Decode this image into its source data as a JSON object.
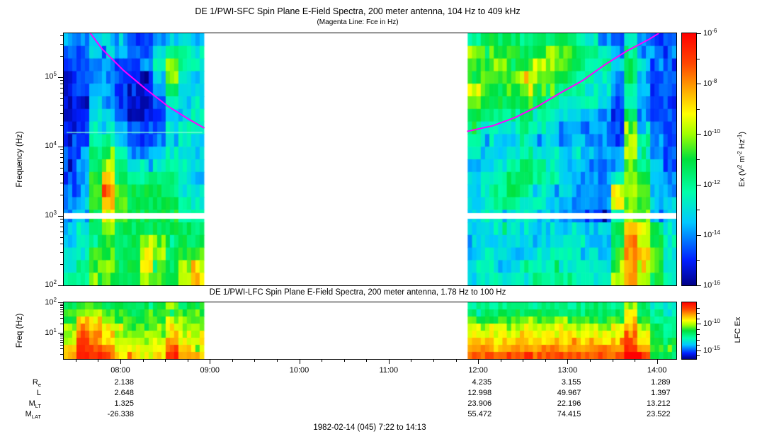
{
  "caption": "1982-02-14 (045) 7:22 to 14:13",
  "colors": {
    "fce_line": "#ff00ff",
    "frame": "#000000",
    "background": "#ffffff",
    "data_gap": "#ffffff"
  },
  "ephemeris": {
    "row_labels": [
      {
        "main": "R",
        "sub": "e"
      },
      {
        "main": "L",
        "sub": ""
      },
      {
        "main": "M",
        "sub": "LT"
      },
      {
        "main": "M",
        "sub": "LAT"
      }
    ],
    "columns": [
      {
        "time": "08:00",
        "values": [
          "2.138",
          "2.648",
          "1.325",
          "-26.338"
        ]
      },
      {
        "time": "12:00",
        "values": [
          "4.235",
          "12.998",
          "23.906",
          "55.472"
        ]
      },
      {
        "time": "13:00",
        "values": [
          "3.155",
          "49.967",
          "22.196",
          "74.415"
        ]
      },
      {
        "time": "14:00",
        "values": [
          "1.289",
          "1.397",
          "13.212",
          "23.522"
        ]
      }
    ]
  },
  "chart_data": [
    {
      "type": "heatmap",
      "title": "DE 1/PWI-SFC  Spin Plane E-Field Spectra, 200 meter antenna, 104 Hz to 409 kHz",
      "subtitle": "(Magenta Line: Fce in Hz)",
      "ylabel": "Frequency (Hz)",
      "y_scale": "log",
      "y_range_hz": [
        104,
        409000
      ],
      "exp_base": "10",
      "y_tick_exponents": [
        2,
        3,
        4,
        5
      ],
      "x_range": [
        "07:22",
        "14:13"
      ],
      "x_tick_labels": [
        "08:00",
        "09:00",
        "10:00",
        "11:00",
        "12:00",
        "13:00",
        "14:00"
      ],
      "x_minor_tick_minutes": 15,
      "data_gap": [
        "08:56",
        "11:53"
      ],
      "value_scale_log10": [
        -16,
        -6
      ],
      "separator_logf": 3.0,
      "artifact_line": {
        "time_range": [
          "07:24",
          "08:55"
        ],
        "logf": 4.21,
        "color": "rgba(130,255,215,0.9)"
      },
      "colorbar": {
        "label_segments": [
          [
            "Ex (V",
            0
          ],
          [
            "2",
            1
          ],
          [
            " m",
            0
          ],
          [
            "-2",
            1
          ],
          [
            " Hz",
            0
          ],
          [
            "-1",
            1
          ],
          [
            ")",
            0
          ]
        ],
        "tick_exponents_major": [
          -6,
          -8,
          -10,
          -12,
          -14,
          -16
        ],
        "tick_exponents_minor": [
          -7,
          -9,
          -11,
          -13,
          -15
        ],
        "range_log10": [
          -16,
          -6
        ]
      },
      "fce_line": {
        "color": "#ff00ff",
        "points_left": [
          [
            "07:40",
            5.63
          ],
          [
            "07:48",
            5.4
          ],
          [
            "08:02",
            5.1
          ],
          [
            "08:17",
            4.83
          ],
          [
            "08:32",
            4.58
          ],
          [
            "08:47",
            4.38
          ],
          [
            "08:56",
            4.27
          ]
        ],
        "points_right": [
          [
            "11:53",
            4.22
          ],
          [
            "12:10",
            4.3
          ],
          [
            "12:25",
            4.42
          ],
          [
            "12:40",
            4.58
          ],
          [
            "12:55",
            4.77
          ],
          [
            "13:10",
            4.95
          ],
          [
            "13:25",
            5.18
          ],
          [
            "13:40",
            5.38
          ],
          [
            "13:55",
            5.55
          ],
          [
            "14:01",
            5.63
          ]
        ]
      },
      "grid": {
        "rows_are_top_first": true,
        "logf_top": 5.63,
        "logf_bottom": 2.0,
        "left_block": {
          "time_range": [
            "07:22",
            "08:56"
          ],
          "rows": [
            "33443223443",
            "22443224665",
            "22332235965",
            "12332114954",
            "12432113744",
            "11432112544",
            "12542112445",
            "12553222455",
            "12664223454",
            "23775334554",
            "23796555654",
            "238b7666654",
            "238c8777655",
            "348b8777765",
            "347a8777766",
            "45797777776",
            "45787799777",
            "558877a9788",
            "568977a879a",
            "668877988ab"
          ]
        },
        "right_block": {
          "time_range": [
            "11:53",
            "14:13"
          ],
          "rows": [
            "6777677765325322",
            "9888789876536422",
            "88988a9876647422",
            "7889a98766537422",
            "a878987665536422",
            "9777876555426322",
            "7666765444327322",
            "6555654333328422",
            "5544544343329632",
            "5445655444339632",
            "4456765443338642",
            "4567765433359843",
            "45676544333a9843",
            "45665543333a9844",
            "4555544332259844",
            "445544444447ba75",
            "444544455447ca75",
            "454445555548cb85",
            "554455655558ca85",
            "555556665559c975"
          ]
        }
      }
    },
    {
      "type": "heatmap",
      "title": "DE 1/PWI-LFC  Spin Plane E-Field Spectra, 200 meter antenna, 1.78 Hz to 100 Hz",
      "ylabel": "Freq (Hz)",
      "y_scale": "log",
      "y_range_hz": [
        1.78,
        100
      ],
      "exp_base": "10",
      "y_tick_exponents": [
        1,
        2
      ],
      "x_range": [
        "07:22",
        "14:13"
      ],
      "data_gap": [
        "08:56",
        "11:53"
      ],
      "colorbar": {
        "label": "LFC Ex",
        "tick_exponents_major": [
          -10,
          -15
        ],
        "tick_exponents_minor": [
          -7,
          -8,
          -9,
          -11,
          -12,
          -13,
          -14,
          -16
        ]
      },
      "grid": {
        "rows_are_top_first": true,
        "left_block": {
          "time_range": [
            "07:22",
            "08:56"
          ],
          "rows": [
            "78877777977",
            "89988788888",
            "8ba98888a98",
            "9cba9889a99",
            "9dcb9999ba9",
            "adcba99acaa",
            "bedcaaaadba",
            "ceedbbabecb"
          ]
        },
        "right_block": {
          "time_range": [
            "11:53",
            "14:13"
          ],
          "rows": [
            "6666666666669755",
            "777777777777a765",
            "888898898888b866",
            "a9a9a9aa9a9ac976",
            "aaaabaabaaaada76",
            "bbbbbbbbbbbbdb77",
            "ccccccccccccec87",
            "ddddeddeddddfd87"
          ]
        }
      }
    }
  ]
}
